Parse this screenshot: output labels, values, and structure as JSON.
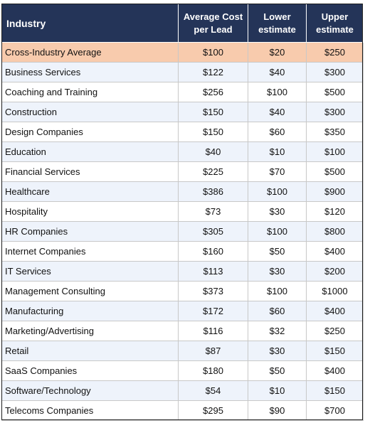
{
  "header": {
    "industry": "Industry",
    "avg": "Average Cost per Lead",
    "lower": "Lower estimate",
    "upper": "Upper estimate"
  },
  "rows": [
    {
      "industry": "Cross-Industry Average",
      "avg": "$100",
      "lower": "$20",
      "upper": "$250"
    },
    {
      "industry": "Business Services",
      "avg": "$122",
      "lower": "$40",
      "upper": "$300"
    },
    {
      "industry": "Coaching and Training",
      "avg": "$256",
      "lower": "$100",
      "upper": "$500"
    },
    {
      "industry": "Construction",
      "avg": "$150",
      "lower": "$40",
      "upper": "$300"
    },
    {
      "industry": "Design Companies",
      "avg": "$150",
      "lower": "$60",
      "upper": "$350"
    },
    {
      "industry": "Education",
      "avg": "$40",
      "lower": "$10",
      "upper": "$100"
    },
    {
      "industry": "Financial Services",
      "avg": "$225",
      "lower": "$70",
      "upper": "$500"
    },
    {
      "industry": "Healthcare",
      "avg": "$386",
      "lower": "$100",
      "upper": "$900"
    },
    {
      "industry": "Hospitality",
      "avg": "$73",
      "lower": "$30",
      "upper": "$120"
    },
    {
      "industry": "HR Companies",
      "avg": "$305",
      "lower": "$100",
      "upper": "$800"
    },
    {
      "industry": "Internet Companies",
      "avg": "$160",
      "lower": "$50",
      "upper": "$400"
    },
    {
      "industry": "IT Services",
      "avg": "$113",
      "lower": "$30",
      "upper": "$200"
    },
    {
      "industry": "Management Consulting",
      "avg": "$373",
      "lower": "$100",
      "upper": "$1000"
    },
    {
      "industry": "Manufacturing",
      "avg": "$172",
      "lower": "$60",
      "upper": "$400"
    },
    {
      "industry": "Marketing/Advertising",
      "avg": "$116",
      "lower": "$32",
      "upper": "$250"
    },
    {
      "industry": "Retail",
      "avg": "$87",
      "lower": "$30",
      "upper": "$150"
    },
    {
      "industry": "SaaS Companies",
      "avg": "$180",
      "lower": "$50",
      "upper": "$400"
    },
    {
      "industry": "Software/Technology",
      "avg": "$54",
      "lower": "$10",
      "upper": "$150"
    },
    {
      "industry": "Telecoms Companies",
      "avg": "$295",
      "lower": "$90",
      "upper": "$700"
    }
  ],
  "colors": {
    "header_bg": "#243458",
    "highlight_row": "#f8cbad",
    "alt_row": "#eef3fb"
  }
}
